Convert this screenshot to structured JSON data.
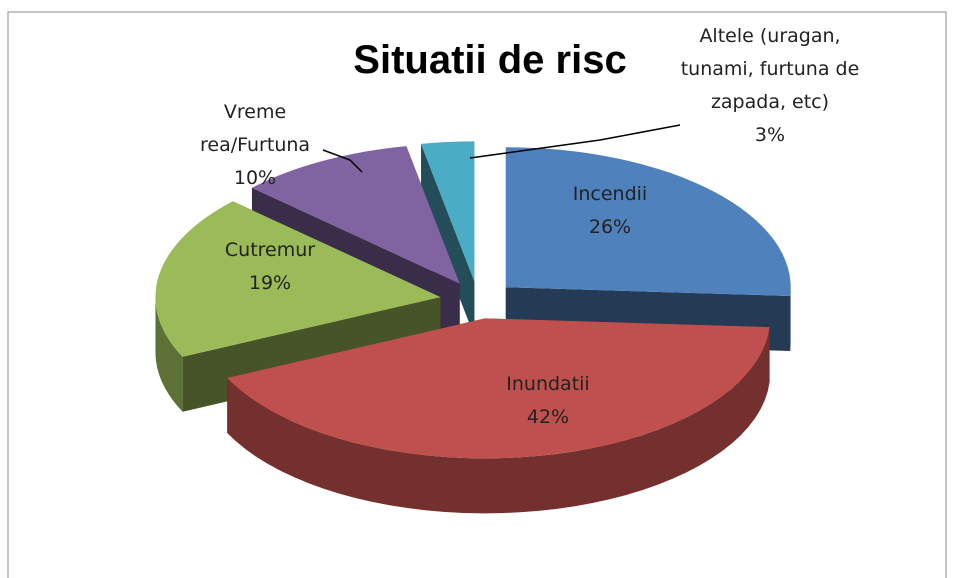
{
  "chart_data": {
    "type": "pie3d",
    "title": "Situatii de risc",
    "categories": [
      "Incendii",
      "Inundatii",
      "Cutremur",
      "Vreme rea/Furtuna",
      "Altele (uragan, tunami, furtuna de zapada, etc)"
    ],
    "values": [
      26,
      42,
      19,
      10,
      3
    ],
    "value_labels": [
      "26%",
      "42%",
      "19%",
      "10%",
      "3%"
    ],
    "colors": [
      "#4f81bd",
      "#c0504d",
      "#9bbb59",
      "#8064a2",
      "#4bacc6"
    ]
  }
}
